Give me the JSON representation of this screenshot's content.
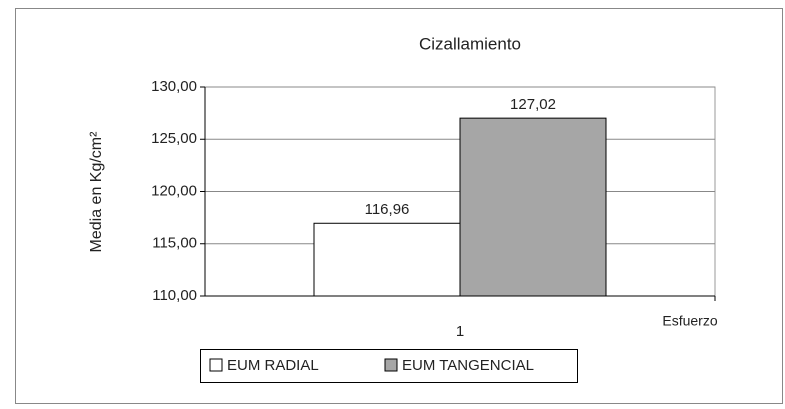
{
  "chart_data": {
    "type": "bar",
    "title": "Cizallamiento",
    "y_label": "Media en Kg/cm²",
    "x_label": "Esfuerzo",
    "categories": [
      "1"
    ],
    "series": [
      {
        "name": "EUM RADIAL",
        "color": "#ffffff",
        "values": [
          116.96
        ],
        "value_labels": [
          "116,96"
        ]
      },
      {
        "name": "EUM TANGENCIAL",
        "color": "#a6a6a6",
        "values": [
          127.02
        ],
        "value_labels": [
          "127,02"
        ]
      }
    ],
    "ylim": [
      110,
      130
    ],
    "yticks": [
      {
        "value": 110,
        "label": "110,00"
      },
      {
        "value": 115,
        "label": "115,00"
      },
      {
        "value": 120,
        "label": "120,00"
      },
      {
        "value": 125,
        "label": "125,00"
      },
      {
        "value": 130,
        "label": "130,00"
      }
    ],
    "grid": true,
    "legend": "bottom"
  }
}
